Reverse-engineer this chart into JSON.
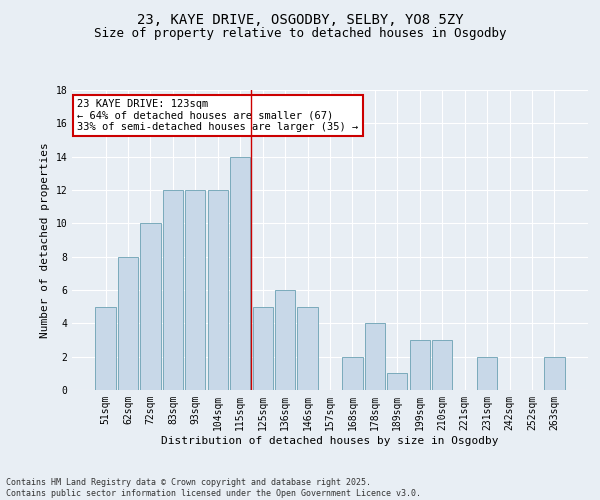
{
  "title": "23, KAYE DRIVE, OSGODBY, SELBY, YO8 5ZY",
  "subtitle": "Size of property relative to detached houses in Osgodby",
  "xlabel": "Distribution of detached houses by size in Osgodby",
  "ylabel": "Number of detached properties",
  "categories": [
    "51sqm",
    "62sqm",
    "72sqm",
    "83sqm",
    "93sqm",
    "104sqm",
    "115sqm",
    "125sqm",
    "136sqm",
    "146sqm",
    "157sqm",
    "168sqm",
    "178sqm",
    "189sqm",
    "199sqm",
    "210sqm",
    "221sqm",
    "231sqm",
    "242sqm",
    "252sqm",
    "263sqm"
  ],
  "values": [
    5,
    8,
    10,
    12,
    12,
    12,
    14,
    5,
    6,
    5,
    0,
    2,
    4,
    1,
    3,
    3,
    0,
    2,
    0,
    0,
    2
  ],
  "bar_color": "#c8d8e8",
  "bar_edge_color": "#7aaabb",
  "vline_x": 6.5,
  "vline_color": "#cc0000",
  "annotation_title": "23 KAYE DRIVE: 123sqm",
  "annotation_line2": "← 64% of detached houses are smaller (67)",
  "annotation_line3": "33% of semi-detached houses are larger (35) →",
  "annotation_box_color": "#ffffff",
  "annotation_box_edge": "#cc0000",
  "ylim": [
    0,
    18
  ],
  "yticks": [
    0,
    2,
    4,
    6,
    8,
    10,
    12,
    14,
    16,
    18
  ],
  "bg_color": "#e8eef4",
  "plot_bg_color": "#e8eef4",
  "footer_line1": "Contains HM Land Registry data © Crown copyright and database right 2025.",
  "footer_line2": "Contains public sector information licensed under the Open Government Licence v3.0.",
  "title_fontsize": 10,
  "subtitle_fontsize": 9,
  "axis_label_fontsize": 8,
  "tick_fontsize": 7,
  "annotation_fontsize": 7.5,
  "footer_fontsize": 6
}
